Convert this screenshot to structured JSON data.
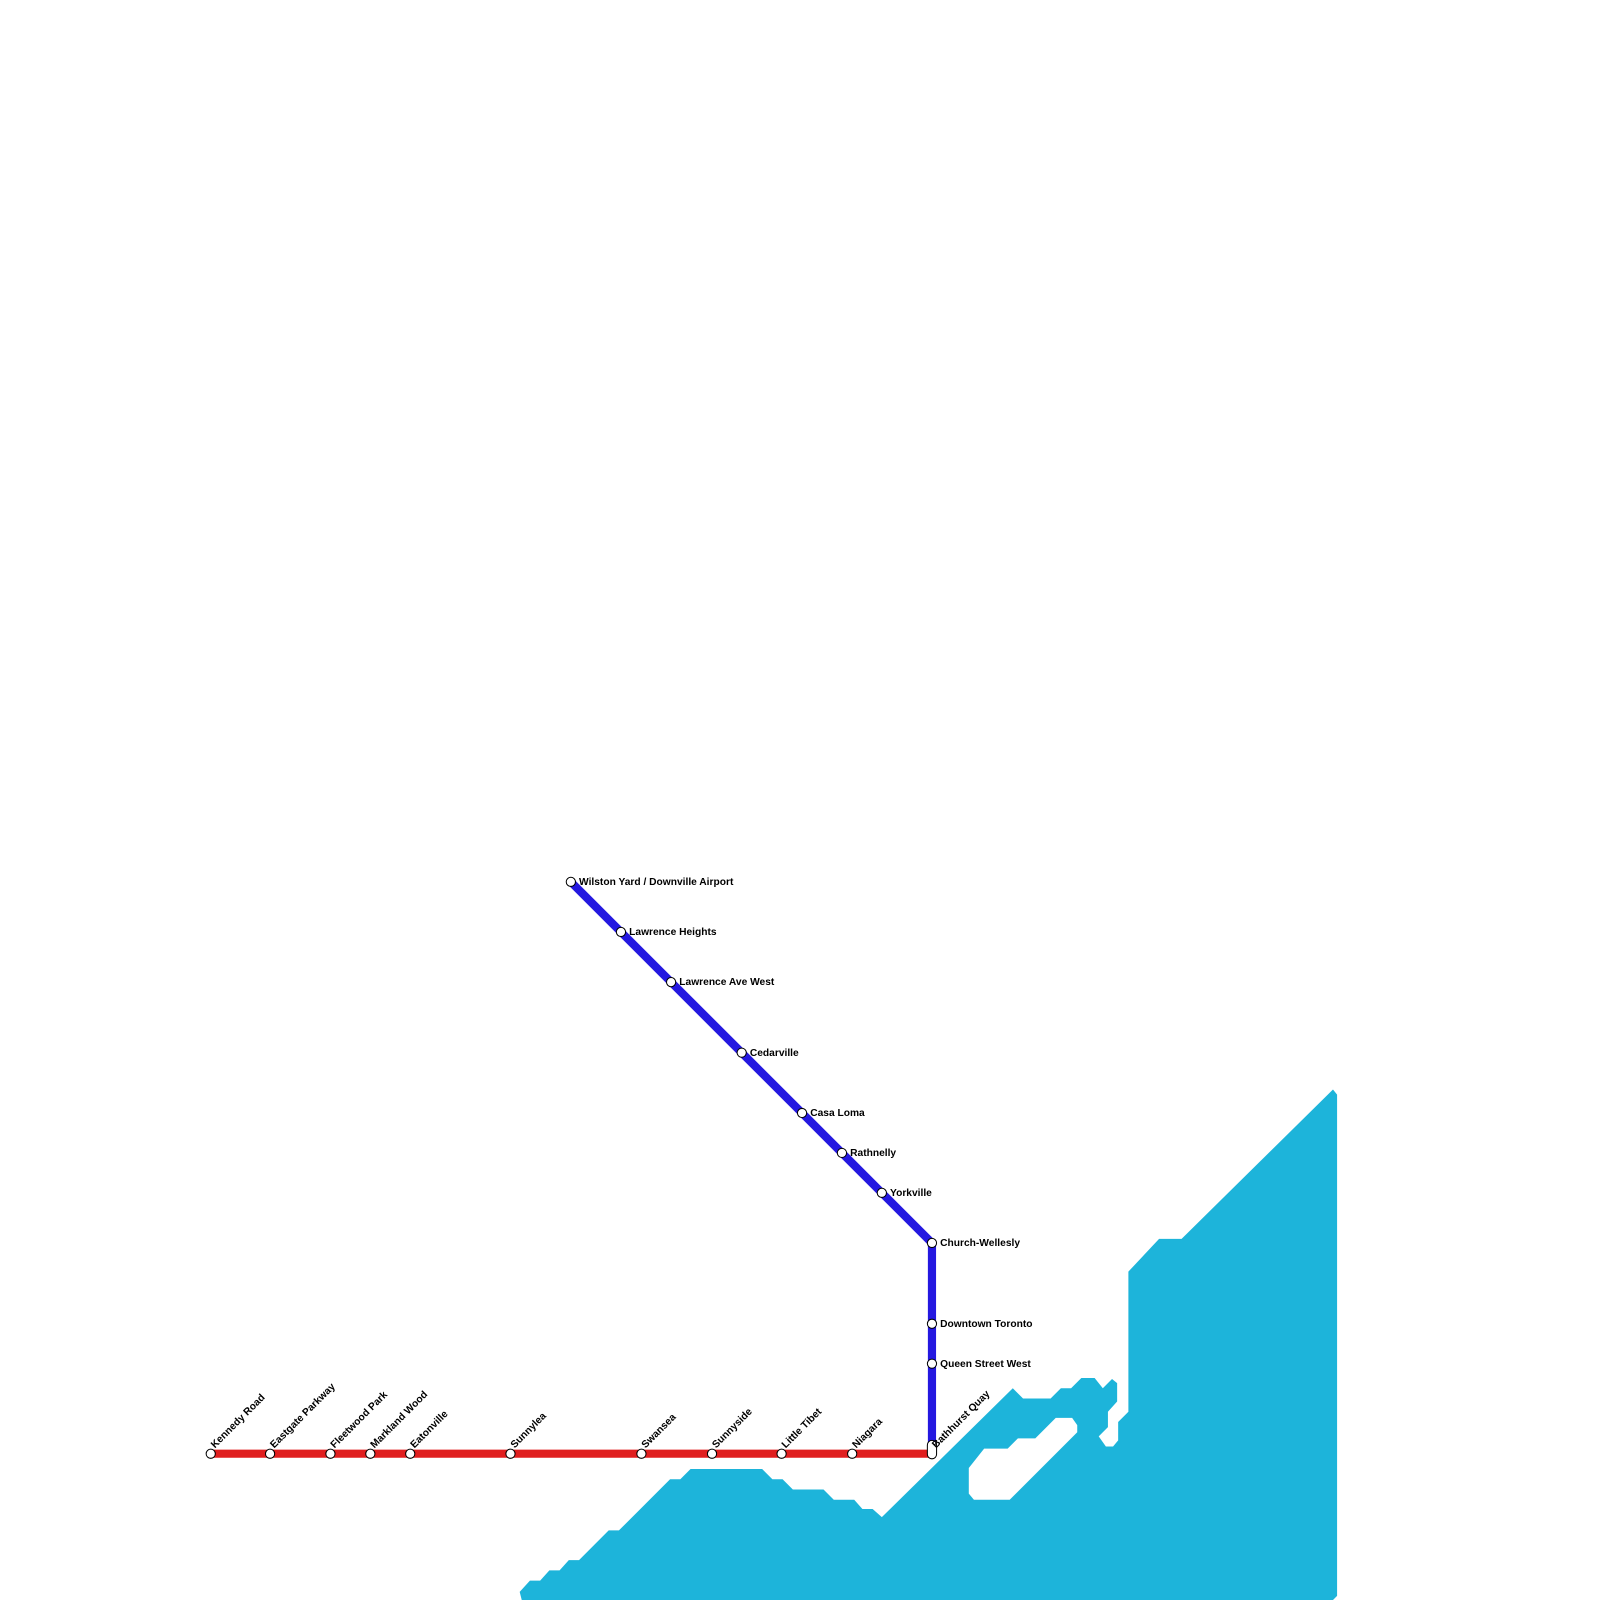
{
  "lines": [
    {
      "stations": [
        "Wilston Yard / Downville Airport",
        "Lawrence Heights",
        "Lawrence Ave West",
        "Cedarville",
        "Casa Loma",
        "Rathnelly",
        "Yorkville",
        "Church-Wellesly",
        "Downtown Toronto",
        "Queen Street West"
      ]
    },
    {
      "stations": [
        "Kennedy Road",
        "Eastgate Parkway",
        "Fleetwood Park",
        "Markland Wood",
        "Eatonville",
        "Sunnylea",
        "Swansea",
        "Sunnyside",
        "Little Tibet",
        "Niagara",
        "Bathhurst Quay"
      ]
    }
  ]
}
